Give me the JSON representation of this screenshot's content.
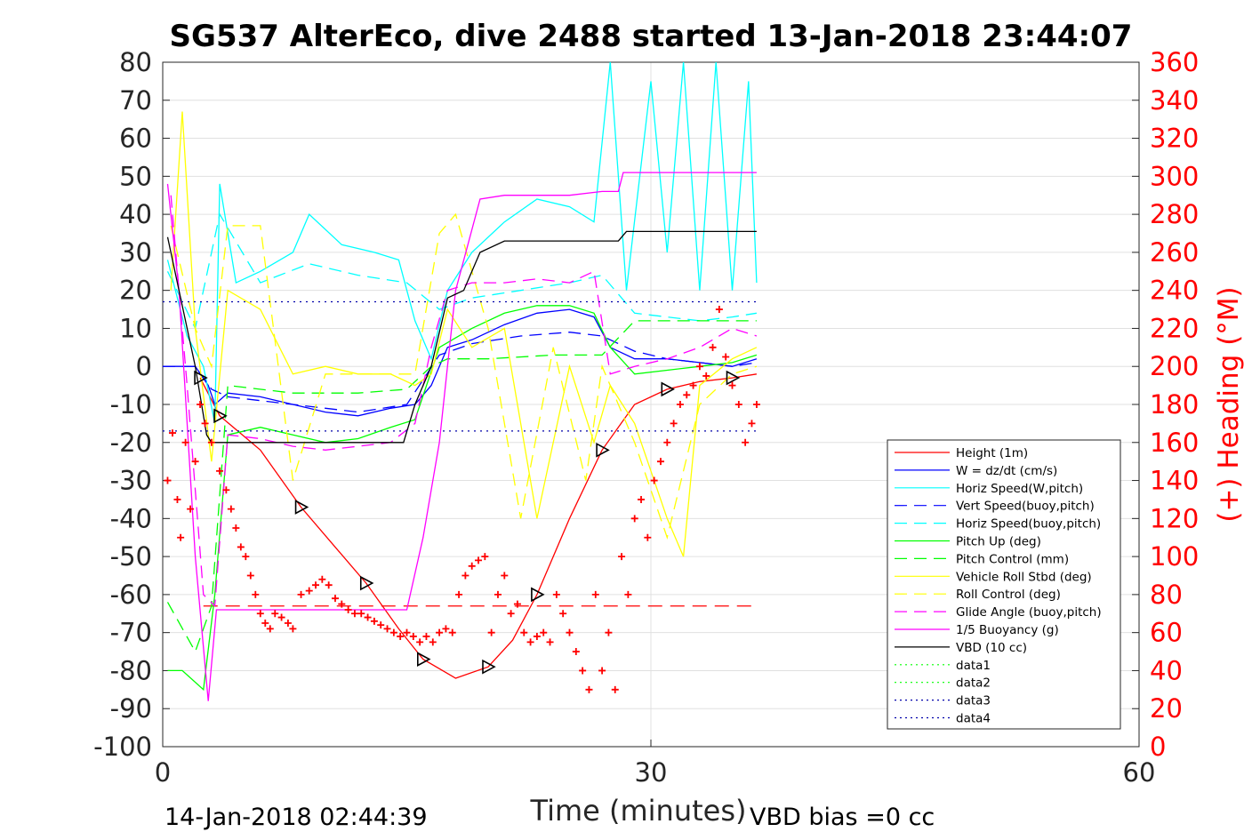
{
  "chart_data": {
    "type": "line",
    "title": "SG537 AlterEco, dive 2488 started 13-Jan-2018 23:44:07",
    "xlabel": "Time (minutes)",
    "ylabel": "",
    "y2label": "(+) Heading (°M)",
    "xlim": [
      0,
      60
    ],
    "ylim": [
      -100,
      80
    ],
    "y2lim": [
      0,
      360
    ],
    "xticks": [
      "0",
      "30",
      "60"
    ],
    "yticks": [
      "80",
      "70",
      "60",
      "50",
      "40",
      "30",
      "20",
      "10",
      "0",
      "-10",
      "-20",
      "-30",
      "-40",
      "-50",
      "-60",
      "-70",
      "-80",
      "-90",
      "-100"
    ],
    "y2ticks": [
      "360",
      "340",
      "320",
      "300",
      "280",
      "260",
      "240",
      "220",
      "200",
      "180",
      "160",
      "140",
      "120",
      "100",
      "80",
      "60",
      "40",
      "20",
      "0"
    ],
    "grid": true,
    "legend_position": "bottom-right",
    "footer_left": "14-Jan-2018 02:44:39",
    "footer_right": "VBD bias =0 cc",
    "colors": {
      "red": "#ff0000",
      "blue": "#0000ff",
      "cyan": "#00ffff",
      "green": "#00ff00",
      "yellow": "#ffff00",
      "magenta": "#ff00ff",
      "black": "#000000",
      "navy": "#0000aa"
    },
    "series": [
      {
        "name": "Height (1m)",
        "color": "#ff0000",
        "style": "solid",
        "x": [
          2.3,
          3.5,
          6,
          8.5,
          10.5,
          12.5,
          14.5,
          16,
          18,
          20,
          21.5,
          23,
          25,
          27,
          29,
          31,
          33,
          35,
          36.5
        ],
        "y": [
          -3,
          -13,
          -22,
          -37,
          -47,
          -57,
          -69,
          -77,
          -82,
          -79,
          -72,
          -60,
          -40,
          -22,
          -10,
          -6,
          -4,
          -3,
          -2
        ]
      },
      {
        "name": "W = dz/dt (cm/s)",
        "color": "#0000ff",
        "style": "solid",
        "x": [
          0,
          2,
          2.8,
          3.2,
          4,
          6,
          8,
          10,
          12,
          14,
          15.5,
          16.5,
          17.5,
          19,
          21,
          23,
          25,
          26.5,
          27.5,
          29,
          31,
          33,
          35,
          36.5
        ],
        "y": [
          0,
          0,
          -5,
          -10,
          -7,
          -8,
          -10,
          -12,
          -13,
          -11,
          -10,
          -5,
          5,
          7,
          11,
          14,
          15,
          13,
          5,
          2,
          2,
          1,
          0,
          2
        ]
      },
      {
        "name": "Horiz Speed(W,pitch)",
        "color": "#00ffff",
        "style": "solid",
        "x": [
          0.3,
          1.5,
          2.5,
          3.2,
          3.5,
          4.5,
          6,
          8,
          9,
          11,
          13,
          14.5,
          15.5,
          16.5,
          17.5,
          19,
          21,
          23,
          25,
          26.5,
          27.5,
          28.5,
          30,
          31,
          32,
          33,
          34,
          35,
          36,
          36.5
        ],
        "y": [
          28,
          8,
          0,
          -15,
          48,
          22,
          25,
          30,
          40,
          32,
          30,
          28,
          12,
          2,
          20,
          30,
          38,
          44,
          42,
          38,
          80,
          20,
          75,
          30,
          80,
          20,
          80,
          20,
          75,
          22
        ]
      },
      {
        "name": "Vert Speed(buoy,pitch)",
        "color": "#0000ff",
        "style": "dashed",
        "x": [
          0,
          2,
          3,
          4,
          8,
          12,
          15,
          17,
          19,
          22,
          25,
          27,
          29,
          31,
          33,
          35,
          36.5
        ],
        "y": [
          0,
          0,
          -6,
          -8,
          -10,
          -12,
          -10,
          3,
          6,
          8,
          9,
          8,
          4,
          2,
          1,
          0,
          1
        ]
      },
      {
        "name": "Horiz Speed(buoy,pitch)",
        "color": "#00ffff",
        "style": "dashed",
        "x": [
          0.3,
          2,
          3.5,
          6,
          9,
          12,
          15,
          17,
          19,
          22,
          25,
          27,
          29,
          31,
          33,
          35,
          36.5
        ],
        "y": [
          25,
          10,
          40,
          22,
          27,
          24,
          22,
          15,
          18,
          20,
          22,
          24,
          14,
          13,
          12,
          13,
          14
        ]
      },
      {
        "name": "Pitch Up (deg)",
        "color": "#00ff00",
        "style": "solid",
        "x": [
          0.3,
          1.2,
          2.5,
          3.2,
          4,
          6,
          8,
          10,
          12,
          14,
          15.5,
          17,
          19,
          21,
          23,
          25,
          26.5,
          27.5,
          29,
          31,
          33,
          35,
          36.5
        ],
        "y": [
          -80,
          -80,
          -85,
          -60,
          -18,
          -16,
          -18,
          -20,
          -19,
          -16,
          -14,
          5,
          10,
          14,
          16,
          16,
          14,
          5,
          -2,
          -1,
          0,
          1,
          3
        ]
      },
      {
        "name": "Pitch Control (mm)",
        "color": "#00ff00",
        "style": "dashed",
        "x": [
          0.3,
          2,
          3,
          4,
          8,
          12,
          15,
          16.5,
          17.5,
          20,
          24,
          27,
          29,
          31,
          33,
          35,
          36.5
        ],
        "y": [
          -62,
          -75,
          -63,
          -5,
          -7,
          -7,
          -6,
          0,
          2,
          2,
          3,
          3,
          12,
          12,
          12,
          12,
          12
        ]
      },
      {
        "name": "Vehicle Roll Stbd (deg)",
        "color": "#ffff00",
        "style": "solid",
        "x": [
          0.5,
          1.2,
          2,
          3,
          4,
          6,
          8,
          10,
          12,
          14,
          15.5,
          16.5,
          17.5,
          19,
          21,
          23,
          25,
          26.5,
          27.5,
          29,
          31,
          32,
          33,
          35,
          36.5
        ],
        "y": [
          20,
          67,
          10,
          -25,
          20,
          15,
          -2,
          0,
          -2,
          -2,
          -5,
          -2,
          15,
          5,
          10,
          -40,
          0,
          -20,
          -5,
          -15,
          -40,
          -50,
          -5,
          2,
          5
        ]
      },
      {
        "name": "Roll Control (deg)",
        "color": "#ffff00",
        "style": "dashed",
        "x": [
          0.5,
          2,
          3,
          4,
          6,
          8,
          10,
          12,
          14,
          15.5,
          17,
          18,
          20,
          22,
          24,
          26,
          27,
          29,
          31,
          33,
          35,
          36.5
        ],
        "y": [
          37,
          10,
          0,
          37,
          37,
          -30,
          -2,
          -2,
          -2,
          -2,
          35,
          40,
          10,
          -40,
          5,
          -30,
          0,
          -20,
          -45,
          -10,
          -2,
          0
        ]
      },
      {
        "name": "Glide Angle (buoy,pitch)",
        "color": "#ff00ff",
        "style": "dashed",
        "x": [
          0.5,
          1.5,
          2.5,
          3.2,
          4,
          6,
          8,
          10,
          12,
          14,
          15.5,
          16.5,
          17.5,
          19,
          21,
          23,
          25,
          26.5,
          27.5,
          29,
          31,
          33,
          35,
          36.5
        ],
        "y": [
          45,
          -5,
          -60,
          -63,
          -18,
          -19,
          -21,
          -22,
          -21,
          -20,
          -15,
          5,
          20,
          22,
          22,
          23,
          22,
          25,
          -2,
          0,
          2,
          5,
          10,
          8
        ]
      },
      {
        "name": "1/5 Buoyancy (g)",
        "color": "#ff00ff",
        "style": "solid",
        "x": [
          0.3,
          1,
          2,
          2.8,
          3.3,
          15,
          16,
          17,
          18,
          19.5,
          21,
          25,
          27,
          28,
          28.3,
          36.5
        ],
        "y": [
          48,
          20,
          -50,
          -88,
          -64,
          -64,
          -45,
          -20,
          20,
          44,
          45,
          45,
          46,
          46,
          51,
          51
        ]
      },
      {
        "name": "VBD (10 cc)",
        "color": "#000000",
        "style": "solid",
        "x": [
          0.3,
          1,
          2,
          2.7,
          3,
          14.8,
          15.5,
          16.5,
          17.5,
          18.5,
          19.5,
          21,
          25,
          28,
          28.5,
          36.5
        ],
        "y": [
          34,
          20,
          0,
          -18,
          -20,
          -20,
          -10,
          0,
          18,
          20,
          30,
          33,
          33,
          33,
          35.5,
          35.5
        ]
      },
      {
        "name": "data1",
        "color": "#00ff00",
        "style": "dotted",
        "x": [],
        "y": []
      },
      {
        "name": "data2",
        "color": "#00ff00",
        "style": "dotted",
        "x": [],
        "y": []
      },
      {
        "name": "data3",
        "color": "#0000aa",
        "style": "dotted",
        "x": [
          0,
          36.5
        ],
        "y": [
          17,
          17
        ]
      },
      {
        "name": "data4",
        "color": "#0000aa",
        "style": "dotted",
        "x": [
          0,
          36.5
        ],
        "y": [
          -17,
          -17
        ]
      }
    ],
    "reference_line": {
      "color": "#ff0000",
      "style": "dashed",
      "x": [
        2.5,
        36.5
      ],
      "y": [
        -63,
        -63
      ]
    },
    "heading_points": {
      "color": "#ff0000",
      "marker": "+",
      "axis": "right",
      "x": [
        0.3,
        0.6,
        0.9,
        1.1,
        1.4,
        1.7,
        2,
        2.3,
        2.6,
        3,
        3.5,
        3.9,
        4.2,
        4.5,
        4.8,
        5.1,
        5.4,
        5.7,
        6,
        6.3,
        6.6,
        6.9,
        7.3,
        7.7,
        8,
        8.5,
        9,
        9.4,
        9.8,
        10.2,
        10.6,
        11,
        11.4,
        11.8,
        12.2,
        12.6,
        13,
        13.4,
        13.8,
        14.2,
        14.6,
        15,
        15.4,
        15.8,
        16.2,
        16.6,
        17,
        17.4,
        17.8,
        18.2,
        18.6,
        19,
        19.4,
        19.8,
        20.2,
        20.6,
        21,
        21.4,
        21.8,
        22.2,
        22.6,
        23,
        23.4,
        23.8,
        24.2,
        24.6,
        25,
        25.4,
        25.8,
        26.2,
        26.6,
        27,
        27.4,
        27.8,
        28.2,
        28.6,
        29,
        29.4,
        29.8,
        30.2,
        30.6,
        31,
        31.4,
        31.8,
        32.2,
        32.6,
        33,
        33.4,
        33.8,
        34.2,
        34.6,
        35,
        35.4,
        35.8,
        36.2,
        36.5
      ],
      "y": [
        140,
        165,
        130,
        110,
        160,
        125,
        150,
        180,
        170,
        160,
        145,
        135,
        125,
        115,
        105,
        100,
        90,
        80,
        70,
        65,
        62,
        70,
        68,
        65,
        62,
        80,
        82,
        85,
        88,
        85,
        78,
        75,
        72,
        70,
        70,
        68,
        66,
        64,
        62,
        60,
        58,
        60,
        58,
        55,
        58,
        55,
        60,
        62,
        60,
        80,
        90,
        95,
        98,
        100,
        60,
        80,
        90,
        70,
        75,
        60,
        55,
        58,
        60,
        55,
        80,
        70,
        60,
        50,
        40,
        30,
        80,
        40,
        60,
        30,
        100,
        80,
        120,
        130,
        110,
        140,
        150,
        160,
        170,
        180,
        185,
        190,
        200,
        195,
        210,
        230,
        205,
        190,
        180,
        160,
        170,
        180
      ]
    }
  }
}
